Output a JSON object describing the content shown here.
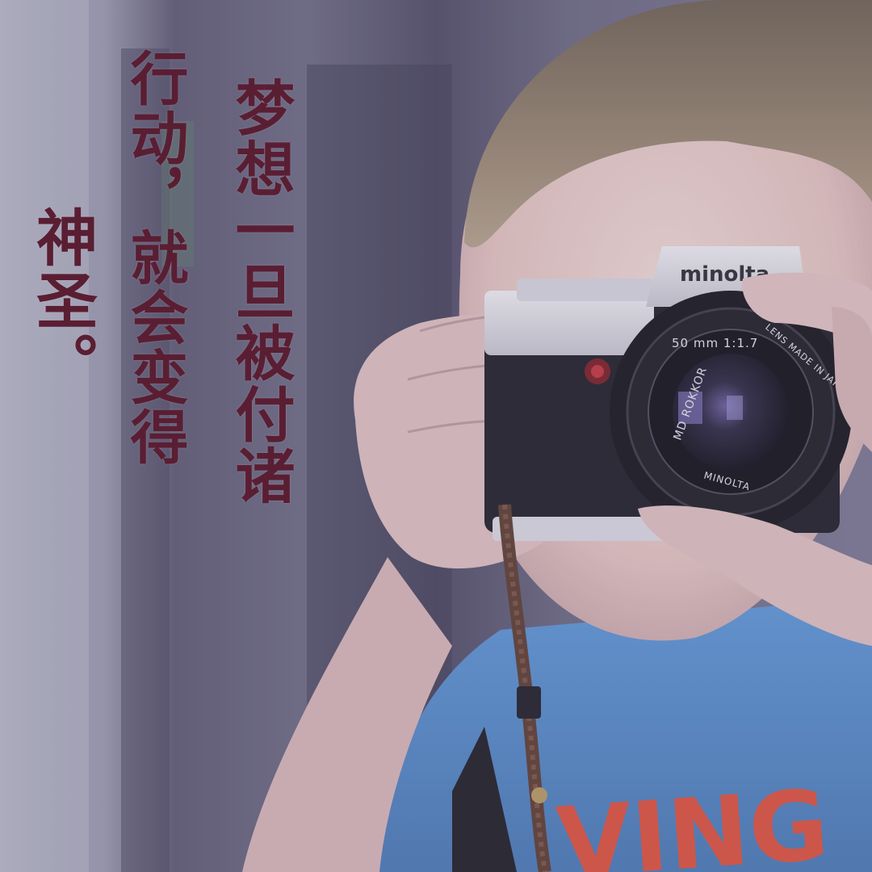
{
  "quote": {
    "lines": [
      "梦想一旦被付诸",
      "行动，就会变得",
      "神圣。"
    ]
  },
  "camera": {
    "brand": "minolta",
    "lens_spec": "50 mm 1:1.7",
    "lens_model": "MD ROKKOR",
    "lens_origin": "LENS MADE IN JAPAN",
    "lens_brand": "MINOLTA"
  },
  "shirt": {
    "text": "VING"
  },
  "colors": {
    "quote_text": "#5a1e33",
    "tint_overlay": "#7873968a",
    "shirt": "#4f86c9",
    "skin": "#e9cfc8"
  }
}
